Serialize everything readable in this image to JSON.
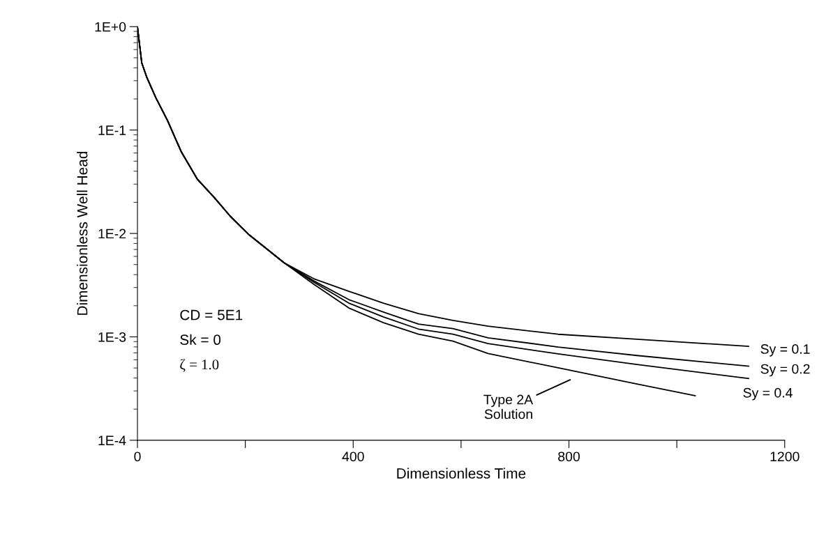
{
  "chart_data": {
    "type": "line",
    "xlabel": "Dimensionless Time",
    "ylabel": "Dimensionless Well Head",
    "log": "y",
    "grid": false,
    "legend": false,
    "marker": "none",
    "line_style": "solid",
    "xlim": [
      0,
      1200
    ],
    "xticks": [
      0,
      {
        "value": 200,
        "label": null
      },
      400,
      {
        "value": 600,
        "label": null
      },
      800,
      {
        "value": 1000,
        "label": null
      },
      1200
    ],
    "ylim": [
      0.0001,
      1
    ],
    "yticks": [
      {
        "value": 0.0001,
        "label": "1E-4"
      },
      {
        "value": 0.001,
        "label": "1E-3"
      },
      {
        "value": 0.01,
        "label": "1E-2"
      },
      {
        "value": 0.1,
        "label": "1E-1"
      },
      {
        "value": 1,
        "label": "1E+0"
      }
    ],
    "series": [
      {
        "name": "Sy = 0.1",
        "color": "#000000",
        "x": [
          0,
          8,
          17,
          34,
          56,
          81,
          111,
          142,
          172,
          207,
          241,
          272,
          327,
          392,
          456,
          521,
          585,
          650,
          780,
          926,
          1133
        ],
        "values": [
          1,
          0.446,
          0.327,
          0.206,
          0.123,
          0.062,
          0.0335,
          0.0224,
          0.0147,
          0.0097,
          0.007,
          0.0052,
          0.00365,
          0.00276,
          0.00212,
          0.00168,
          0.00144,
          0.00127,
          0.00106,
          0.00095,
          0.00081
        ]
      },
      {
        "name": "Sy = 0.2",
        "color": "#000000",
        "x": [
          0,
          8,
          17,
          34,
          56,
          81,
          111,
          142,
          172,
          207,
          241,
          272,
          327,
          392,
          456,
          521,
          585,
          650,
          780,
          926,
          1133
        ],
        "values": [
          1,
          0.446,
          0.327,
          0.206,
          0.123,
          0.062,
          0.0335,
          0.0224,
          0.0147,
          0.0097,
          0.007,
          0.0052,
          0.00348,
          0.00229,
          0.00174,
          0.00133,
          0.0012,
          0.00098,
          0.000798,
          0.00066,
          0.00052
        ]
      },
      {
        "name": "Sy = 0.4",
        "color": "#000000",
        "x": [
          0,
          8,
          17,
          34,
          56,
          81,
          111,
          142,
          172,
          207,
          241,
          272,
          327,
          392,
          456,
          521,
          585,
          650,
          780,
          926,
          1133
        ],
        "values": [
          1,
          0.446,
          0.327,
          0.206,
          0.123,
          0.062,
          0.0335,
          0.0224,
          0.0147,
          0.0097,
          0.007,
          0.0052,
          0.00338,
          0.00212,
          0.00156,
          0.00119,
          0.00106,
          0.00086,
          0.000684,
          0.00054,
          0.000396
        ]
      },
      {
        "name": "Type 2A\nSolution",
        "color": "#000000",
        "x": [
          0,
          8,
          17,
          34,
          56,
          81,
          111,
          142,
          172,
          207,
          241,
          272,
          327,
          392,
          456,
          521,
          585,
          650,
          780,
          926,
          1034
        ],
        "values": [
          1,
          0.446,
          0.327,
          0.206,
          0.123,
          0.062,
          0.0335,
          0.0224,
          0.0147,
          0.0097,
          0.007,
          0.0052,
          0.00323,
          0.0019,
          0.00137,
          0.00106,
          0.00091,
          0.00069,
          0.000502,
          0.00035,
          0.00027
        ]
      }
    ],
    "annotations": [
      "CD = 5E1",
      "Sk = 0",
      "ζ = 1.0"
    ]
  }
}
